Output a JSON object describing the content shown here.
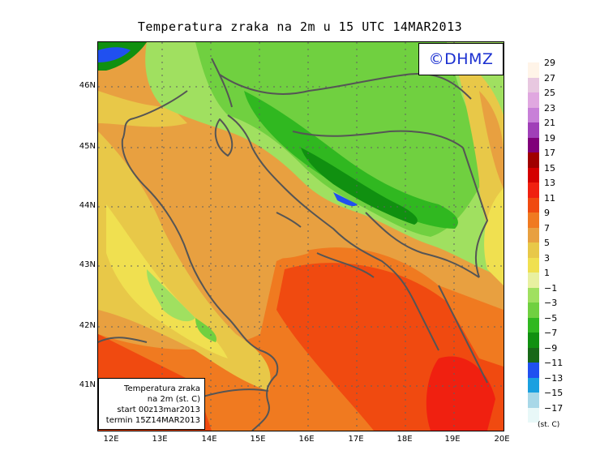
{
  "title": "Temperatura zraka na 2m u 15 UTC 14MAR2013",
  "logo": "©DHMZ",
  "info_box": {
    "line1": "Temperatura zraka",
    "line2": "na 2m (st. C)",
    "line3": "start 00z13mar2013",
    "line4": "termin 15Z14MAR2013"
  },
  "axes": {
    "lat_labels": [
      "46N",
      "45N",
      "44N",
      "43N",
      "42N",
      "41N"
    ],
    "lon_labels": [
      "12E",
      "13E",
      "14E",
      "15E",
      "16E",
      "17E",
      "18E",
      "19E",
      "20E"
    ]
  },
  "legend": {
    "unit": "(st. C)",
    "labels": [
      "29",
      "27",
      "25",
      "23",
      "21",
      "19",
      "17",
      "15",
      "13",
      "11",
      "9",
      "7",
      "5",
      "3",
      "1",
      "−1",
      "−3",
      "−5",
      "−7",
      "−9",
      "−11",
      "−13",
      "−15",
      "−17"
    ],
    "colors": [
      "#fff4e8",
      "#e8c8e0",
      "#e0a8e0",
      "#c880d8",
      "#a040b8",
      "#80007a",
      "#a00000",
      "#d40000",
      "#f02010",
      "#f04a10",
      "#f07a20",
      "#e8a040",
      "#e8c848",
      "#f0e050",
      "#e8f0a0",
      "#a0e060",
      "#70d040",
      "#30b820",
      "#109010",
      "#186818",
      "#2050f0",
      "#1aa0e0",
      "#a8d8e8",
      "#e8f8f8"
    ]
  }
}
